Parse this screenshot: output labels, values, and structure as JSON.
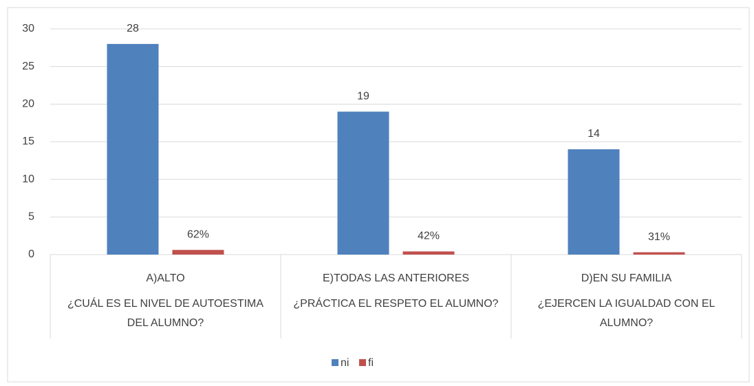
{
  "chart_data": {
    "type": "bar",
    "categories": [
      "A)ALTO",
      "E)TODAS LAS  ANTERIORES",
      "D)EN SU FAMILIA"
    ],
    "category_groups": [
      "¿CUÁL ES EL NIVEL DE AUTOESTIMA DEL ALUMNO?",
      "¿PRÁCTICA EL RESPETO EL ALUMNO?",
      "¿EJERCEN LA IGUALDAD CON EL ALUMNO?"
    ],
    "series": [
      {
        "name": "ni",
        "color": "#4f81bd",
        "values": [
          28,
          19,
          14
        ]
      },
      {
        "name": "fi",
        "color": "#c0504d",
        "values": [
          0.62,
          0.42,
          0.31
        ],
        "value_labels": [
          "62%",
          "42%",
          "31%"
        ]
      }
    ],
    "ylim": [
      0,
      30
    ],
    "yticks": [
      0,
      5,
      10,
      15,
      20,
      25,
      30
    ],
    "grid": true,
    "legend": "bottom"
  }
}
